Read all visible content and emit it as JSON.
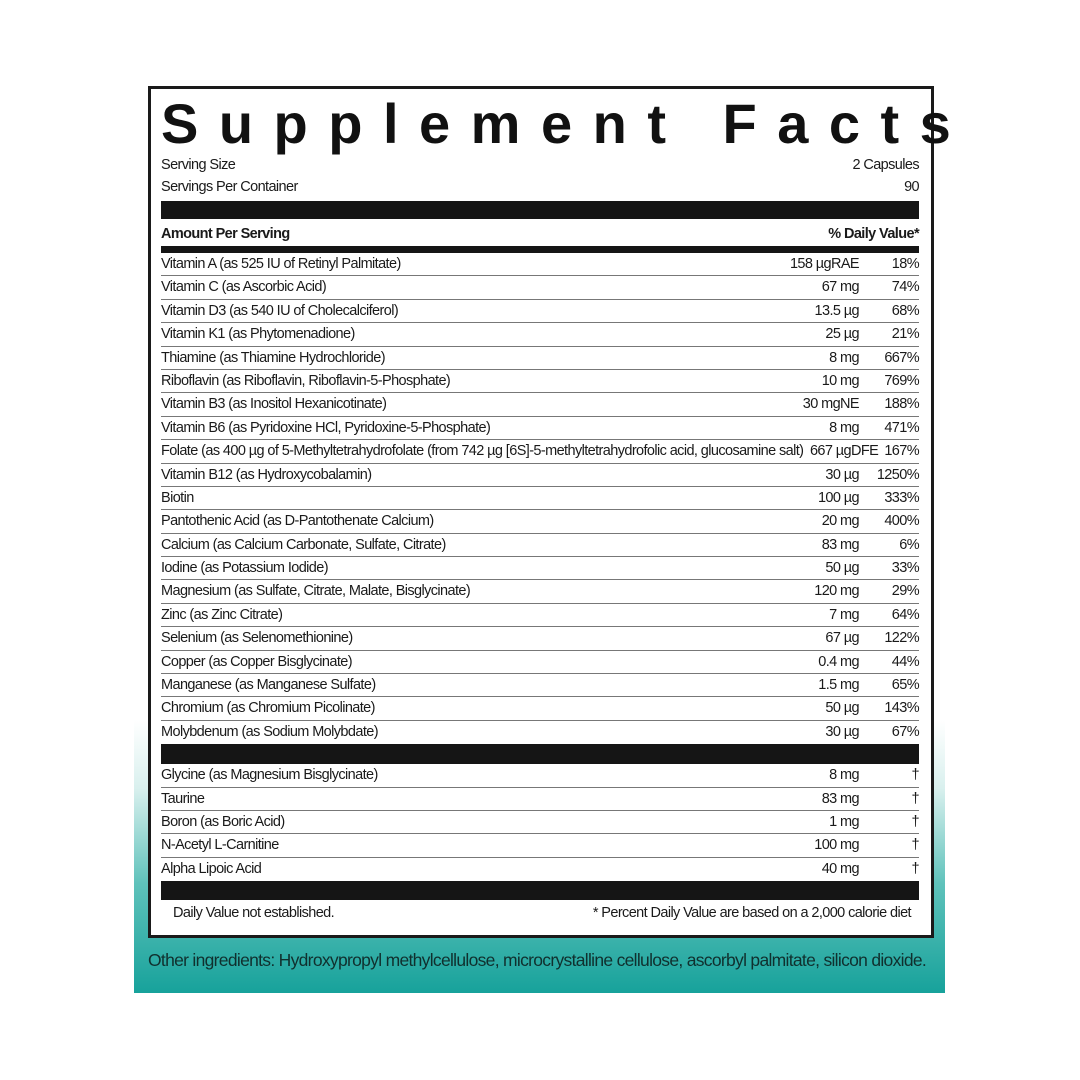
{
  "title": "Supplement Facts",
  "serving_size_label": "Serving Size",
  "serving_size": "2 Capsules",
  "servings_label": "Servings Per Container",
  "servings": "90",
  "amount_header": "Amount Per Serving",
  "dv_header": "% Daily Value*",
  "nutrients": [
    {
      "name": "Vitamin A (as 525 IU of Retinyl Palmitate)",
      "amount": "158  µgRAE",
      "dv": "18%"
    },
    {
      "name": "Vitamin C (as Ascorbic Acid)",
      "amount": "67 mg",
      "dv": "74%"
    },
    {
      "name": "Vitamin D3 (as 540 IU of Cholecalciferol)",
      "amount": "13.5 µg",
      "dv": "68%"
    },
    {
      "name": "Vitamin K1 (as Phytomenadione)",
      "amount": "25  µg",
      "dv": "21%"
    },
    {
      "name": "Thiamine (as Thiamine Hydrochloride)",
      "amount": "8 mg",
      "dv": "667%"
    },
    {
      "name": "Riboflavin (as Riboflavin, Riboflavin-5-Phosphate)",
      "amount": "10 mg",
      "dv": "769%"
    },
    {
      "name": "Vitamin B3 (as Inositol Hexanicotinate)",
      "amount": "30 mgNE",
      "dv": "188%"
    },
    {
      "name": "Vitamin B6 (as Pyridoxine HCl, Pyridoxine-5-Phosphate)",
      "amount": "8 mg",
      "dv": "471%"
    },
    {
      "name": "Folate (as 400 µg of 5-Methyltetrahydrofolate (from 742 µg [6S]-5-methyltetrahydrofolic acid, glucosamine salt)",
      "amount": "667 µgDFE",
      "dv": "167%"
    },
    {
      "name": "Vitamin B12 (as Hydroxycobalamin)",
      "amount": "30  µg",
      "dv": "1250%"
    },
    {
      "name": "Biotin",
      "amount": "100  µg",
      "dv": "333%"
    },
    {
      "name": "Pantothenic Acid (as D-Pantothenate Calcium)",
      "amount": "20 mg",
      "dv": "400%"
    },
    {
      "name": "Calcium (as Calcium Carbonate, Sulfate, Citrate)",
      "amount": "83 mg",
      "dv": "6%"
    },
    {
      "name": "Iodine (as Potassium Iodide)",
      "amount": "50  µg",
      "dv": "33%"
    },
    {
      "name": "Magnesium (as Sulfate, Citrate, Malate, Bisglycinate)",
      "amount": "120 mg",
      "dv": "29%"
    },
    {
      "name": "Zinc (as Zinc Citrate)",
      "amount": "7 mg",
      "dv": "64%"
    },
    {
      "name": "Selenium (as Selenomethionine)",
      "amount": "67  µg",
      "dv": "122%"
    },
    {
      "name": "Copper (as Copper Bisglycinate)",
      "amount": "0.4 mg",
      "dv": "44%"
    },
    {
      "name": "Manganese (as Manganese Sulfate)",
      "amount": "1.5 mg",
      "dv": "65%"
    },
    {
      "name": "Chromium (as Chromium Picolinate)",
      "amount": "50  µg",
      "dv": "143%"
    },
    {
      "name": "Molybdenum (as Sodium Molybdate)",
      "amount": "30  µg",
      "dv": "67%"
    }
  ],
  "others": [
    {
      "name": "Glycine (as Magnesium Bisglycinate)",
      "amount": "8 mg",
      "dv": "†"
    },
    {
      "name": "Taurine",
      "amount": "83 mg",
      "dv": "†"
    },
    {
      "name": "Boron (as Boric Acid)",
      "amount": "1 mg",
      "dv": "†"
    },
    {
      "name": "N-Acetyl L-Carnitine",
      "amount": "100 mg",
      "dv": "†"
    },
    {
      "name": "Alpha Lipoic Acid",
      "amount": "40 mg",
      "dv": "†"
    }
  ],
  "footnote_left": "Daily Value not established.",
  "footnote_right": "* Percent Daily Value are based on a 2,000 calorie diet",
  "other_ingredients": "Other ingredients: Hydroxypropyl methylcellulose, microcrystalline cellulose, ascorbyl palmitate, silicon dioxide.",
  "colors": {
    "accent": "#17a29b",
    "ink": "#1a1a1a"
  }
}
